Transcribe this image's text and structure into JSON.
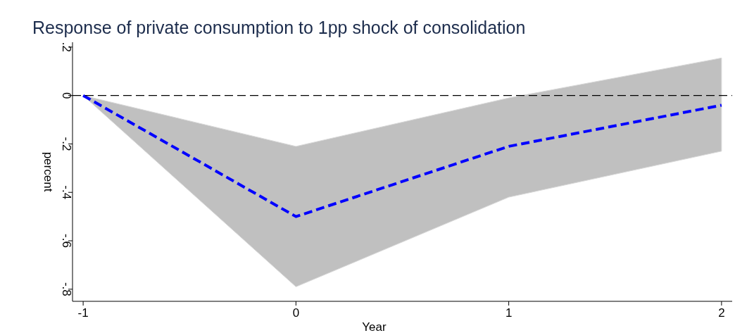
{
  "chart_data": {
    "type": "line",
    "title": "Response of private consumption to 1pp shock of  consolidation",
    "xlabel": "Year",
    "ylabel": "percent",
    "x": [
      -1,
      0,
      1,
      2
    ],
    "series": [
      {
        "color": "#0000ff",
        "values": [
          0,
          -0.5,
          -0.21,
          -0.04
        ],
        "lower": [
          0,
          -0.79,
          -0.42,
          -0.23
        ],
        "upper": [
          0,
          -0.21,
          -0.01,
          0.155
        ]
      }
    ],
    "xlim": [
      -1.05,
      2.05
    ],
    "ylim": [
      -0.85,
      0.22
    ],
    "xticks": [
      -1,
      0,
      1,
      2
    ],
    "yticks": [
      {
        "value": -0.8,
        "label": "-.8"
      },
      {
        "value": -0.6,
        "label": "-.6"
      },
      {
        "value": -0.4,
        "label": "-.4"
      },
      {
        "value": -0.2,
        "label": "-.2"
      },
      0,
      {
        "value": 0.2,
        "label": ".2"
      }
    ],
    "ref_lines": [
      {
        "axis": "y",
        "value": 0,
        "color": "#000000",
        "line_style": "dashed"
      }
    ],
    "line_style": "dashed",
    "grid": false
  }
}
